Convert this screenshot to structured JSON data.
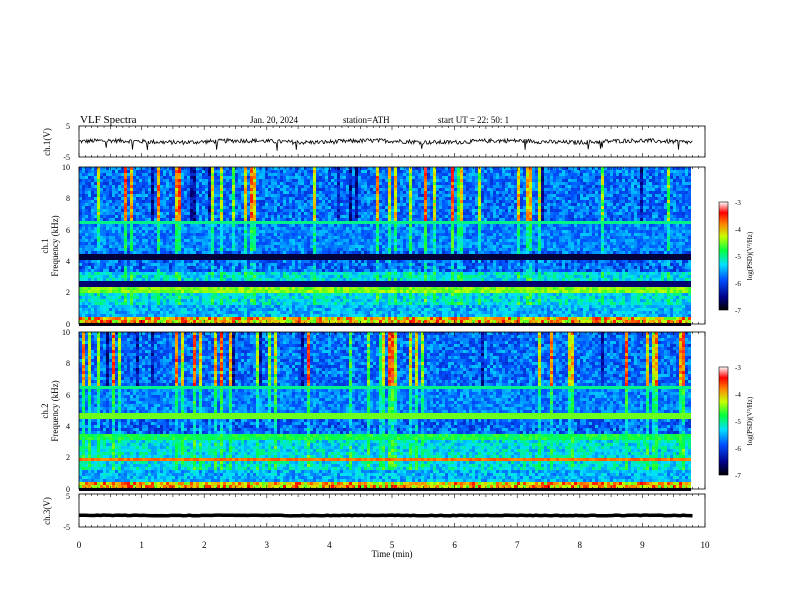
{
  "header": {
    "title": "VLF  Spectra",
    "date": "Jan. 20, 2024",
    "station": "station=ATH",
    "start_time": "start  UT  =   22: 50: 1"
  },
  "chart_data": [
    {
      "type": "line",
      "ylabel": "ch.1(V)",
      "ylim": [
        -5,
        5
      ],
      "y_ticks": [
        "5",
        "-5"
      ],
      "xlim": [
        0,
        10
      ],
      "series": [
        {
          "values_description_note": "",
          "mean": 0,
          "noise_amplitude": 0.7
        }
      ]
    },
    {
      "type": "heatmap",
      "ylabel": "ch.1\nFrequency (kHz)",
      "ylabel_lines": [
        "ch.1",
        "Frequency (kHz)"
      ],
      "ylim": [
        0,
        10
      ],
      "y_ticks": [
        "0",
        "2",
        "4",
        "6",
        "8",
        "10"
      ],
      "xlim": [
        0,
        10
      ],
      "data_end_min": 9.8,
      "colorbar": {
        "label": "log(PSD)(V²/Hz)",
        "range": [
          -7,
          -3
        ],
        "ticks": [
          "-3",
          "-4",
          "-5",
          "-6",
          "-7"
        ]
      }
    },
    {
      "type": "heatmap",
      "ylabel": "ch.2\nFrequency (kHz)",
      "ylabel_lines": [
        "ch.2",
        "Frequency (kHz)"
      ],
      "ylim": [
        0,
        10
      ],
      "y_ticks": [
        "0",
        "2",
        "4",
        "6",
        "8",
        "10"
      ],
      "xlim": [
        0,
        10
      ],
      "data_end_min": 9.8,
      "colorbar": {
        "label": "log(PSD)(V²/Hz)",
        "range": [
          -7,
          -3
        ],
        "ticks": [
          "-3",
          "-4",
          "-5",
          "-6",
          "-7"
        ]
      }
    },
    {
      "type": "line",
      "ylabel": "ch.3(V)",
      "ylim": [
        -5,
        5
      ],
      "y_ticks": [
        "5",
        "-5"
      ],
      "xlim": [
        0,
        10
      ],
      "xlabel": "Time  (min)",
      "x_ticks": [
        "0",
        "1",
        "2",
        "3",
        "4",
        "5",
        "6",
        "7",
        "8",
        "9",
        "10"
      ],
      "series": [
        {
          "mean": -1.5,
          "noise_amplitude": 0.1
        }
      ]
    }
  ]
}
